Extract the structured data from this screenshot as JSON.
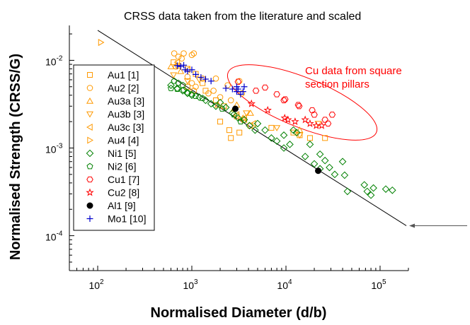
{
  "chart_data": {
    "type": "scatter",
    "title": "CRSS data taken from the literature and scaled",
    "xlabel": "Normalised Diameter (d/b)",
    "ylabel": "Normalised Strength (CRSS/G)",
    "xscale": "log",
    "yscale": "log",
    "xlim": [
      50,
      200000
    ],
    "ylim": [
      4e-05,
      0.025
    ],
    "x_ticks": [
      100,
      1000,
      10000,
      100000
    ],
    "x_tick_labels": [
      {
        "base": "10",
        "exp": "2"
      },
      {
        "base": "10",
        "exp": "3"
      },
      {
        "base": "10",
        "exp": "4"
      },
      {
        "base": "10",
        "exp": "5"
      }
    ],
    "y_ticks": [
      0.0001,
      0.001,
      0.01
    ],
    "y_tick_labels": [
      {
        "base": "10",
        "exp": "-4"
      },
      {
        "base": "10",
        "exp": "-3"
      },
      {
        "base": "10",
        "exp": "-2"
      }
    ],
    "legend_position": "left",
    "annotation": {
      "lines": [
        "Cu data from square",
        "section pillars"
      ],
      "color": "#ff0000"
    },
    "fit_line": {
      "color": "#000000",
      "points": [
        [
          100,
          0.022
        ],
        [
          190000,
          0.00013
        ]
      ]
    },
    "arrow_color": "#555555",
    "series": [
      {
        "name": "Au1 [1]",
        "marker": "square",
        "color": "#ff9900",
        "points": [
          [
            640,
            0.0095
          ],
          [
            720,
            0.0087
          ],
          [
            900,
            0.008
          ],
          [
            1100,
            0.007
          ],
          [
            1300,
            0.0055
          ],
          [
            900,
            0.005
          ],
          [
            1400,
            0.0045
          ],
          [
            1800,
            0.0035
          ],
          [
            2200,
            0.003
          ],
          [
            3000,
            0.0023
          ],
          [
            3600,
            0.0021
          ],
          [
            2000,
            0.002
          ],
          [
            2500,
            0.0016
          ],
          [
            3200,
            0.0015
          ],
          [
            4200,
            0.0018
          ],
          [
            2600,
            0.0013
          ],
          [
            7000,
            0.0017
          ],
          [
            12000,
            0.0015
          ],
          [
            18000,
            0.0013
          ],
          [
            26000,
            0.0013
          ],
          [
            14000,
            0.0014
          ]
        ]
      },
      {
        "name": "Au2 [2]",
        "marker": "circle",
        "color": "#ff9900",
        "points": [
          [
            650,
            0.012
          ],
          [
            720,
            0.011
          ],
          [
            780,
            0.0105
          ],
          [
            820,
            0.012
          ],
          [
            1000,
            0.0115
          ],
          [
            1050,
            0.012
          ],
          [
            680,
            0.0085
          ],
          [
            900,
            0.0065
          ],
          [
            1000,
            0.0055
          ],
          [
            1050,
            0.0045
          ],
          [
            1100,
            0.005
          ],
          [
            1300,
            0.0062
          ],
          [
            1800,
            0.0062
          ],
          [
            2400,
            0.0052
          ],
          [
            3200,
            0.0058
          ],
          [
            3400,
            0.0042
          ],
          [
            2600,
            0.0035
          ],
          [
            1500,
            0.0042
          ],
          [
            2000,
            0.0038
          ],
          [
            1700,
            0.0045
          ]
        ]
      },
      {
        "name": "Au3a [3]",
        "marker": "tri-up",
        "color": "#ff9900",
        "points": [
          [
            600,
            0.0085
          ],
          [
            760,
            0.0075
          ],
          [
            3000,
            0.0031
          ],
          [
            1900,
            0.0031
          ],
          [
            14000,
            0.0016
          ],
          [
            3500,
            0.0022
          ],
          [
            4200,
            0.0025
          ],
          [
            2800,
            0.0028
          ]
        ]
      },
      {
        "name": "Au3b [3]",
        "marker": "tri-down",
        "color": "#ff9900",
        "points": [
          [
            640,
            0.0068
          ],
          [
            900,
            0.0058
          ],
          [
            1200,
            0.006
          ],
          [
            14000,
            0.0014
          ],
          [
            22000,
            0.0019
          ],
          [
            8000,
            0.0017
          ],
          [
            3800,
            0.0025
          ]
        ]
      },
      {
        "name": "Au3c [3]",
        "marker": "tri-left",
        "color": "#ff9900",
        "points": [
          [
            700,
            0.0095
          ],
          [
            900,
            0.0078
          ],
          [
            3600,
            0.0022
          ],
          [
            4500,
            0.0019
          ],
          [
            3000,
            0.0024
          ]
        ]
      },
      {
        "name": "Au4 [4]",
        "marker": "tri-right",
        "color": "#ff9900",
        "points": [
          [
            108,
            0.016
          ],
          [
            200,
            0.0074
          ],
          [
            230,
            0.0068
          ]
        ]
      },
      {
        "name": "Ni1 [5]",
        "marker": "diamond",
        "color": "#008000",
        "points": [
          [
            600,
            0.0052
          ],
          [
            700,
            0.0048
          ],
          [
            800,
            0.0045
          ],
          [
            900,
            0.0042
          ],
          [
            1000,
            0.004
          ],
          [
            1200,
            0.0038
          ],
          [
            1400,
            0.0035
          ],
          [
            1600,
            0.0032
          ],
          [
            1800,
            0.003
          ],
          [
            2000,
            0.0033
          ],
          [
            2300,
            0.0029
          ],
          [
            2700,
            0.0025
          ],
          [
            3100,
            0.0022
          ],
          [
            3600,
            0.0021
          ],
          [
            4100,
            0.0018
          ],
          [
            4700,
            0.0016
          ],
          [
            5000,
            0.0019
          ],
          [
            6000,
            0.0016
          ],
          [
            7000,
            0.0013
          ],
          [
            8000,
            0.0012
          ],
          [
            9500,
            0.0014
          ],
          [
            9500,
            0.001
          ],
          [
            11000,
            0.0011
          ],
          [
            12000,
            0.0016
          ],
          [
            13000,
            0.0015
          ],
          [
            16000,
            0.0008
          ],
          [
            18000,
            0.0011
          ],
          [
            20000,
            0.00066
          ],
          [
            23000,
            0.00058
          ],
          [
            23000,
            0.00085
          ],
          [
            26000,
            0.00072
          ],
          [
            29000,
            0.0006
          ],
          [
            33000,
            0.0005
          ],
          [
            40000,
            0.0007
          ],
          [
            42000,
            0.00049
          ],
          [
            45000,
            0.00032
          ],
          [
            68000,
            0.00038
          ],
          [
            73000,
            0.00032
          ],
          [
            80000,
            0.00029
          ],
          [
            115000,
            0.00034
          ],
          [
            135000,
            0.00033
          ],
          [
            85000,
            0.00035
          ]
        ]
      },
      {
        "name": "Ni2 [6]",
        "marker": "pentagon",
        "color": "#008000",
        "points": [
          [
            650,
            0.0058
          ],
          [
            720,
            0.0055
          ],
          [
            800,
            0.0052
          ],
          [
            700,
            0.0047
          ],
          [
            820,
            0.0046
          ],
          [
            900,
            0.0043
          ],
          [
            1000,
            0.0041
          ],
          [
            600,
            0.0048
          ],
          [
            1100,
            0.0039
          ],
          [
            1300,
            0.0037
          ],
          [
            2100,
            0.0028
          ],
          [
            2800,
            0.0024
          ],
          [
            3300,
            0.002
          ]
        ]
      },
      {
        "name": "Cu1 [7]",
        "marker": "hexagon",
        "color": "#ff0000",
        "points": [
          [
            3100,
            0.0057
          ],
          [
            4800,
            0.0045
          ],
          [
            6000,
            0.0049
          ],
          [
            8000,
            0.0041
          ],
          [
            9500,
            0.0035
          ],
          [
            9800,
            0.0036
          ],
          [
            13500,
            0.0031
          ],
          [
            13800,
            0.003
          ],
          [
            19000,
            0.0027
          ],
          [
            20000,
            0.0024
          ],
          [
            26000,
            0.0021
          ],
          [
            28000,
            0.0019
          ],
          [
            31000,
            0.0024
          ]
        ]
      },
      {
        "name": "Cu2 [8]",
        "marker": "star",
        "color": "#ff0000",
        "points": [
          [
            4300,
            0.0032
          ],
          [
            6400,
            0.0027
          ],
          [
            9700,
            0.0022
          ],
          [
            10500,
            0.0021
          ],
          [
            12500,
            0.002
          ],
          [
            16000,
            0.0021
          ],
          [
            18000,
            0.0019
          ],
          [
            21000,
            0.0018
          ],
          [
            24000,
            0.0018
          ]
        ]
      },
      {
        "name": "Al1 [9]",
        "marker": "filled-circle",
        "color": "#000000",
        "points": [
          [
            2900,
            0.0028
          ],
          [
            22000,
            0.00055
          ]
        ]
      },
      {
        "name": "Mo1 [10]",
        "marker": "plus",
        "color": "#0000cc",
        "points": [
          [
            700,
            0.0087
          ],
          [
            760,
            0.0085
          ],
          [
            820,
            0.0088
          ],
          [
            850,
            0.0078
          ],
          [
            900,
            0.0075
          ],
          [
            1000,
            0.0078
          ],
          [
            1100,
            0.0069
          ],
          [
            1250,
            0.0064
          ],
          [
            1400,
            0.0061
          ],
          [
            1600,
            0.0058
          ],
          [
            2300,
            0.0048
          ],
          [
            2700,
            0.0047
          ],
          [
            3000,
            0.0044
          ],
          [
            3100,
            0.0047
          ],
          [
            3300,
            0.0041
          ],
          [
            3500,
            0.0044
          ],
          [
            3600,
            0.005
          ],
          [
            3000,
            0.005
          ]
        ]
      }
    ]
  }
}
